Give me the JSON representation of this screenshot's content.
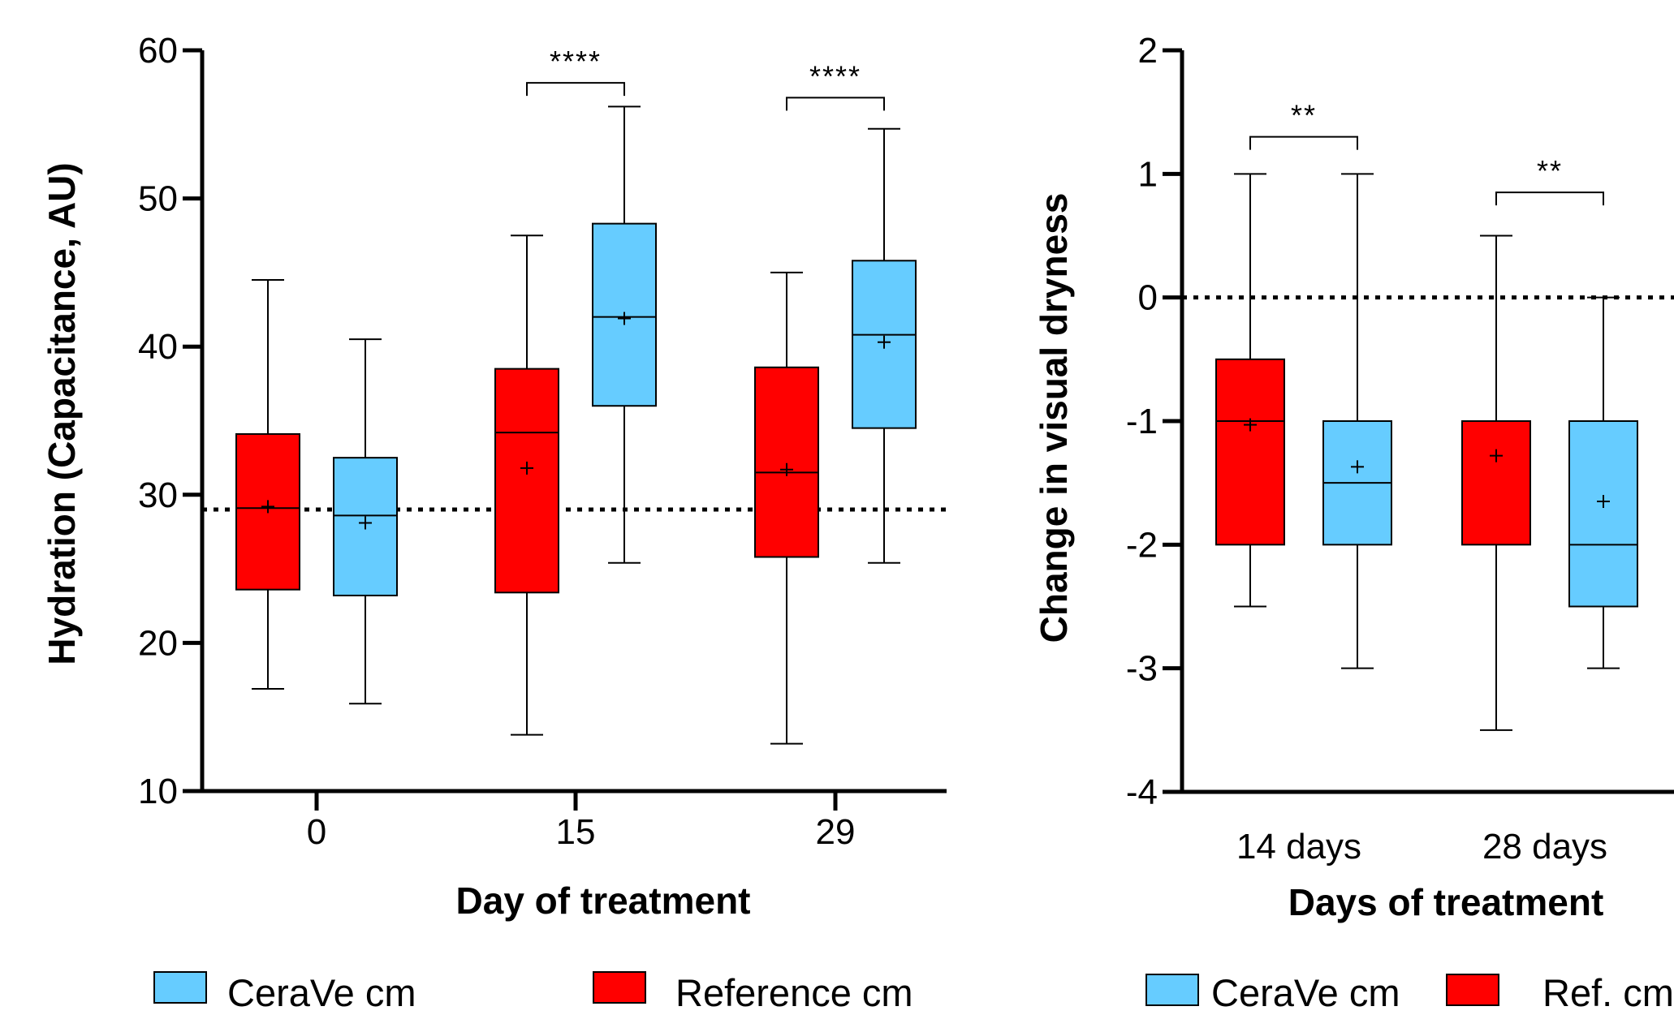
{
  "colors": {
    "cerave": "#66CCFF",
    "reference": "#FF0000",
    "axis": "#000000"
  },
  "chart_data": [
    {
      "type": "box",
      "xlabel": "Day of treatment",
      "ylabel": "Hydration (Capacitance, AU)",
      "ylim": [
        10,
        60
      ],
      "yticks": [
        "10",
        "20",
        "30",
        "40",
        "50",
        "60"
      ],
      "categories": [
        "0",
        "15",
        "29"
      ],
      "reference_line": 29,
      "series": [
        {
          "name": "Reference cm",
          "color": "#FF0000",
          "boxes": [
            {
              "category": "0",
              "min": 16.9,
              "q1": 23.6,
              "median": 29.1,
              "q3": 34.1,
              "max": 44.5,
              "mean": 29.2
            },
            {
              "category": "15",
              "min": 13.8,
              "q1": 23.4,
              "median": 34.2,
              "q3": 38.5,
              "max": 47.5,
              "mean": 31.8
            },
            {
              "category": "29",
              "min": 13.2,
              "q1": 25.8,
              "median": 31.5,
              "q3": 38.6,
              "max": 45.0,
              "mean": 31.7
            }
          ]
        },
        {
          "name": "CeraVe cm",
          "color": "#66CCFF",
          "boxes": [
            {
              "category": "0",
              "min": 15.9,
              "q1": 23.2,
              "median": 28.6,
              "q3": 32.5,
              "max": 40.5,
              "mean": 28.1
            },
            {
              "category": "15",
              "min": 25.4,
              "q1": 36.0,
              "median": 42.0,
              "q3": 48.3,
              "max": 56.2,
              "mean": 41.9
            },
            {
              "category": "29",
              "min": 25.4,
              "q1": 34.5,
              "median": 40.8,
              "q3": 45.8,
              "max": 54.7,
              "mean": 40.3
            }
          ]
        }
      ],
      "significance": [
        {
          "category": "15",
          "label": "****",
          "y": 57.8
        },
        {
          "category": "29",
          "label": "****",
          "y": 56.8
        }
      ],
      "legend": [
        "CeraVe cm",
        "Reference cm"
      ]
    },
    {
      "type": "box",
      "xlabel": "Days of treatment",
      "ylabel": "Change in visual dryness",
      "ylim": [
        -4,
        2
      ],
      "yticks": [
        "-4",
        "-3",
        "-2",
        "-1",
        "0",
        "1",
        "2"
      ],
      "categories": [
        "14 days",
        "28 days"
      ],
      "reference_line": 0,
      "series": [
        {
          "name": "Ref. cm",
          "color": "#FF0000",
          "boxes": [
            {
              "category": "14 days",
              "min": -2.5,
              "q1": -2.0,
              "median": -1.0,
              "q3": -0.5,
              "max": 1.0,
              "mean": -1.03
            },
            {
              "category": "28 days",
              "min": -3.5,
              "q1": -2.0,
              "median": -1.0,
              "q3": -1.0,
              "max": 0.5,
              "mean": -1.28
            }
          ]
        },
        {
          "name": "CeraVe cm",
          "color": "#66CCFF",
          "boxes": [
            {
              "category": "14 days",
              "min": -3.0,
              "q1": -2.0,
              "median": -1.5,
              "q3": -1.0,
              "max": 1.0,
              "mean": -1.37
            },
            {
              "category": "28 days",
              "min": -3.0,
              "q1": -2.5,
              "median": -2.0,
              "q3": -1.0,
              "max": 0.0,
              "mean": -1.65
            }
          ]
        }
      ],
      "significance": [
        {
          "category": "14 days",
          "label": "**",
          "y": 1.3
        },
        {
          "category": "28 days",
          "label": "**",
          "y": 0.85
        }
      ],
      "legend": [
        "CeraVe cm",
        "Ref. cm"
      ]
    }
  ]
}
